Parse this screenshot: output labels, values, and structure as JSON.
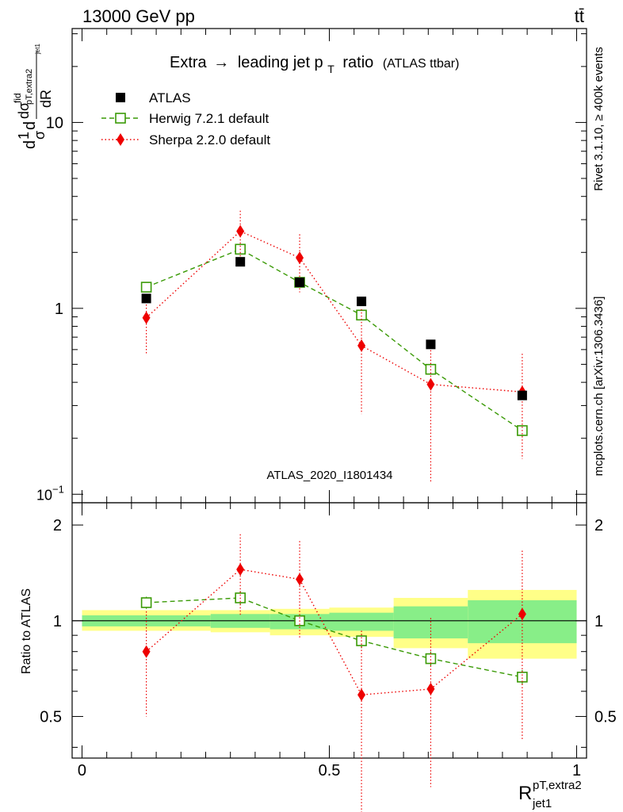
{
  "header": {
    "left": "13000 GeV pp",
    "right": "tt̄"
  },
  "side_labels": {
    "rivet": "Rivet 3.1.10, ≥ 400k events",
    "mcplots": "mcplots.cern.ch [arXiv:1306.3436]"
  },
  "chart_data": [
    {
      "type": "scatter",
      "panel": "main",
      "title": {
        "prefix": "Extra",
        "arrow": "→",
        "middle": "leading jet p",
        "sub": "T",
        "suffix": "ratio",
        "note": "(ATLAS ttbar)"
      },
      "ylabel": "dσ/dR (normalised)",
      "ylabel_glyphs": {
        "d": "d",
        "one": "1",
        "sigma": "σ",
        "dsig": "dσ",
        "fid": "fid",
        "ptextra2": "pT,extra2",
        "jet1": "jet1",
        "dR": "dR"
      },
      "yscale": "log",
      "ylim": [
        0.09,
        32
      ],
      "yticks": [
        {
          "value": 0.1,
          "base": "10",
          "exp": "−1"
        },
        {
          "value": 1,
          "label": "1"
        },
        {
          "value": 10,
          "label": "10"
        }
      ],
      "xlim": [
        -0.02,
        1.02
      ],
      "watermark": "ATLAS_2020_I1801434",
      "legend": {
        "placement": "top-left",
        "entries": [
          "ATLAS",
          "Herwig 7.2.1 default",
          "Sherpa 2.2.0 default"
        ]
      },
      "series": [
        {
          "name": "ATLAS",
          "style": "square-filled",
          "color": "#000000",
          "x": [
            0.13,
            0.32,
            0.44,
            0.565,
            0.705,
            0.89
          ],
          "y": [
            1.13,
            1.78,
            1.38,
            1.09,
            0.64,
            0.34
          ]
        },
        {
          "name": "Herwig 7.2.1 default",
          "style": "square-open",
          "color": "#3a9a06",
          "x": [
            0.13,
            0.32,
            0.44,
            0.565,
            0.705,
            0.89
          ],
          "y": [
            1.3,
            2.08,
            1.38,
            0.92,
            0.47,
            0.22
          ],
          "err_lo": [
            1.24,
            2.0,
            1.33,
            0.88,
            0.45,
            0.205
          ],
          "err_hi": [
            1.36,
            2.16,
            1.43,
            0.96,
            0.49,
            0.235
          ]
        },
        {
          "name": "Sherpa 2.2.0 default",
          "style": "diamond",
          "color": "#ee0000",
          "x": [
            0.13,
            0.32,
            0.44,
            0.565,
            0.705,
            0.89
          ],
          "y": [
            0.89,
            2.6,
            1.87,
            0.63,
            0.39,
            0.355
          ],
          "err_lo": [
            0.57,
            1.85,
            1.22,
            0.27,
            0.115,
            0.155
          ],
          "err_hi": [
            1.18,
            3.35,
            2.5,
            0.99,
            0.67,
            0.57
          ]
        }
      ]
    },
    {
      "type": "scatter",
      "panel": "ratio",
      "ylabel": "Ratio to ATLAS",
      "xlabel_glyphs": {
        "R": "R",
        "sup": "pT,extra2",
        "sub": "jet1"
      },
      "ylim": [
        0.37,
        2.35
      ],
      "yticks": [
        {
          "value": 0.5,
          "label": "0.5"
        },
        {
          "value": 1,
          "label": "1"
        },
        {
          "value": 2,
          "label": "2"
        }
      ],
      "xlim": [
        -0.02,
        1.02
      ],
      "xticks": [
        {
          "value": 0,
          "label": "0"
        },
        {
          "value": 0.5,
          "label": "0.5"
        },
        {
          "value": 1,
          "label": "1"
        }
      ],
      "bins": [
        0.0,
        0.26,
        0.38,
        0.5,
        0.63,
        0.78,
        1.0
      ],
      "band_yellow": {
        "lo": [
          0.93,
          0.92,
          0.9,
          0.89,
          0.82,
          0.76
        ],
        "hi": [
          1.08,
          1.08,
          1.09,
          1.1,
          1.18,
          1.25
        ]
      },
      "band_green": {
        "lo": [
          0.96,
          0.95,
          0.94,
          0.93,
          0.88,
          0.85
        ],
        "hi": [
          1.04,
          1.05,
          1.05,
          1.06,
          1.11,
          1.16
        ]
      },
      "series": [
        {
          "name": "Herwig 7.2.1 default",
          "style": "square-open",
          "color": "#3a9a06",
          "x": [
            0.13,
            0.32,
            0.44,
            0.565,
            0.705,
            0.89
          ],
          "y": [
            1.14,
            1.18,
            1.0,
            0.865,
            0.76,
            0.665
          ],
          "err_lo": [
            1.09,
            1.12,
            0.97,
            0.82,
            0.72,
            0.63
          ],
          "err_hi": [
            1.19,
            1.24,
            1.03,
            0.91,
            0.8,
            0.7
          ]
        },
        {
          "name": "Sherpa 2.2.0 default",
          "style": "diamond",
          "color": "#ee0000",
          "x": [
            0.13,
            0.32,
            0.44,
            0.565,
            0.705,
            0.89
          ],
          "y": [
            0.8,
            1.45,
            1.35,
            0.585,
            0.61,
            1.05
          ],
          "err_lo": [
            0.5,
            1.04,
            0.88,
            0.25,
            0.3,
            0.42
          ],
          "err_hi": [
            1.07,
            1.87,
            1.78,
            0.93,
            1.02,
            1.66
          ]
        }
      ]
    }
  ]
}
